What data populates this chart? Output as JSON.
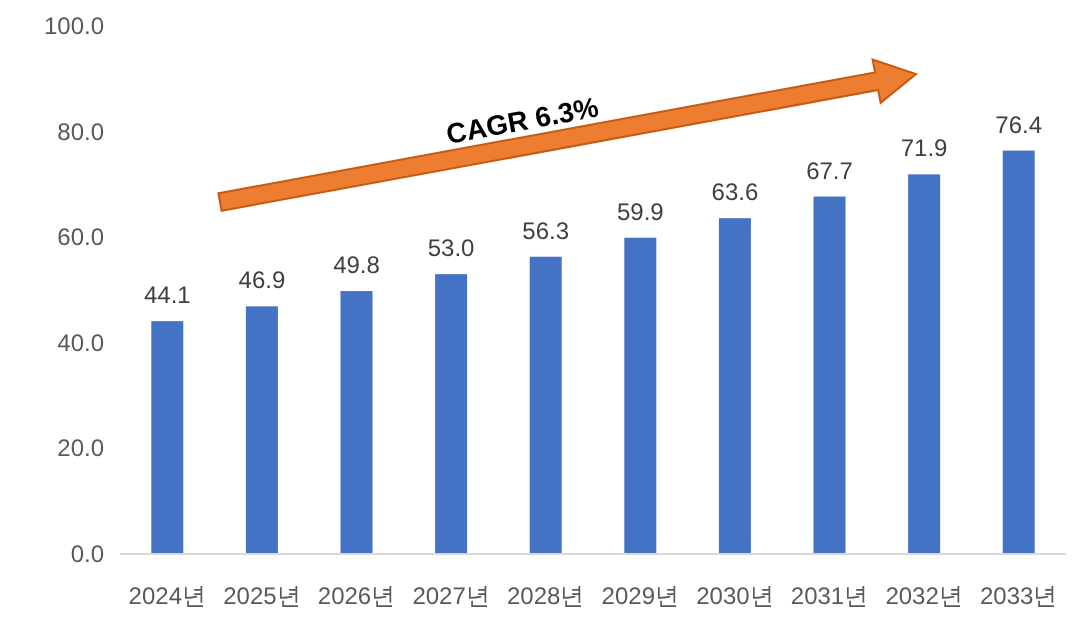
{
  "chart_data": {
    "type": "bar",
    "categories": [
      "2024년",
      "2025년",
      "2026년",
      "2027년",
      "2028년",
      "2029년",
      "2030년",
      "2031년",
      "2032년",
      "2033년"
    ],
    "values": [
      44.1,
      46.9,
      49.8,
      53.0,
      56.3,
      59.9,
      63.6,
      67.7,
      71.9,
      76.4
    ],
    "value_labels": [
      "44.1",
      "46.9",
      "49.8",
      "53.0",
      "56.3",
      "59.9",
      "63.6",
      "67.7",
      "71.9",
      "76.4"
    ],
    "color": "#4472c4",
    "grid": false,
    "ylim": [
      0,
      100
    ],
    "yticks": [
      {
        "value": 0,
        "label": "0.0"
      },
      {
        "value": 20,
        "label": "20.0"
      },
      {
        "value": 40,
        "label": "40.0"
      },
      {
        "value": 60,
        "label": "60.0"
      },
      {
        "value": 80,
        "label": "80.0"
      },
      {
        "value": 100,
        "label": "100.0"
      }
    ],
    "annotations": [
      "CAGR 6.3%"
    ]
  }
}
